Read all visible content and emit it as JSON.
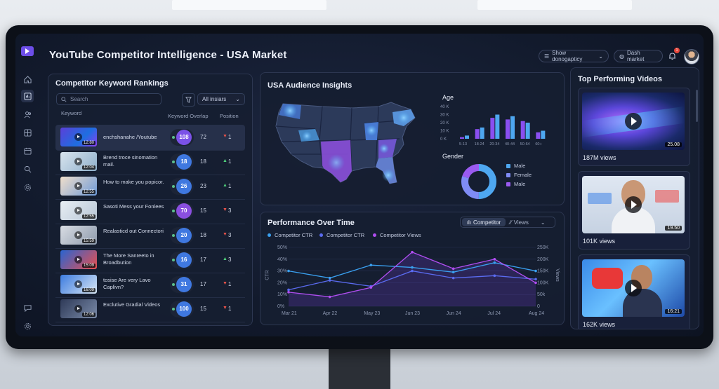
{
  "header": {
    "title": "YouTube Competitor Intelligence - USA Market",
    "show_button": "Show donogapticy",
    "dash_button": "Dash market",
    "notification_count": "1"
  },
  "keyword_panel": {
    "title": "Competitor Keyword Rankings",
    "search_placeholder": "Search",
    "filter_select": "All insiars",
    "columns": {
      "keyword": "Keyword",
      "overlap": "Keyword Overlap",
      "position": "Position"
    },
    "rows": [
      {
        "text": "enchshanahe /Youtube",
        "duration": "12:80",
        "score": "108",
        "overlap": "72",
        "trend": "down",
        "position": "1"
      },
      {
        "text": "Brend troce sinomation mail.",
        "duration": "12:04",
        "score": "18",
        "overlap": "18",
        "trend": "up",
        "position": "1"
      },
      {
        "text": "How to make you popicor.",
        "duration": "12:55",
        "score": "26",
        "overlap": "23",
        "trend": "up",
        "position": "1"
      },
      {
        "text": "Sasoti Mess your Fonlees",
        "duration": "12:55",
        "score": "70",
        "overlap": "15",
        "trend": "down",
        "position": "3"
      },
      {
        "text": "Realasticd out Connectori",
        "duration": "15:59",
        "score": "20",
        "overlap": "18",
        "trend": "down",
        "position": "3"
      },
      {
        "text": "The More Sanreeto in Broadbution",
        "duration": "15:09",
        "score": "16",
        "overlap": "17",
        "trend": "up",
        "position": "3"
      },
      {
        "text": "tosise Are very Lavo Caplivn?",
        "duration": "16:09",
        "score": "31",
        "overlap": "17",
        "trend": "down",
        "position": "1"
      },
      {
        "text": "Exclutive Gradial Videos",
        "duration": "12:06",
        "score": "100",
        "overlap": "15",
        "trend": "down",
        "position": "1"
      }
    ]
  },
  "insights": {
    "title": "USA Audience Insights",
    "age": {
      "label": "Age",
      "y_ticks": [
        "40 K",
        "30 K",
        "20 K",
        "10 K",
        "0 K"
      ],
      "categories": [
        "5-13",
        "18-24",
        "20-34",
        "40-44",
        "50-64",
        "60+"
      ],
      "series_a": [
        1,
        6,
        13,
        12,
        11,
        4
      ],
      "series_b": [
        2,
        7,
        15,
        14,
        10,
        5
      ]
    },
    "gender": {
      "label": "Gender",
      "legend": [
        "Male",
        "Female",
        "Male"
      ],
      "shares": [
        0.5,
        0.3,
        0.2
      ],
      "colors": [
        "#4ea7f0",
        "#7f8cf5",
        "#9a5af0"
      ]
    }
  },
  "top_videos": {
    "title": "Top Performing Videos",
    "items": [
      {
        "views": "187M views",
        "duration": "25.08"
      },
      {
        "views": "101K views",
        "duration": "19.50"
      },
      {
        "views": "162K views",
        "duration": "16:21"
      }
    ]
  },
  "performance": {
    "title": "Performance Over Time",
    "toggle_active": "Competitor",
    "toggle_inactive": "Views",
    "legend": [
      "Competitor CTR",
      "Competitor CTR",
      "Competitor Views"
    ],
    "left_axis_label": "CTR",
    "right_axis_label": "Views",
    "left_ticks": [
      "50%",
      "40%",
      "30%",
      "20%",
      "10%",
      "0%"
    ],
    "right_ticks": [
      "250K",
      "200K",
      "150K",
      "100K",
      "50k",
      "0"
    ],
    "x_ticks": [
      "Mar 21",
      "Apr 22",
      "May 23",
      "Jun 23",
      "Jun 24",
      "Jul 24",
      "Aug 24"
    ]
  },
  "chart_data": {
    "type": "line",
    "x": [
      "Mar 21",
      "Apr 22",
      "May 23",
      "Jun 23",
      "Jun 24",
      "Jul 24",
      "Aug 24"
    ],
    "series": [
      {
        "values": [
          30,
          24,
          35,
          33,
          29,
          37,
          30
        ],
        "color": "#3aa0f0"
      },
      {
        "values": [
          14,
          22,
          17,
          30,
          24,
          26,
          23
        ],
        "color": "#5a6bf0"
      },
      {
        "values": [
          12,
          8,
          16,
          46,
          32,
          40,
          20
        ],
        "color": "#b04ef0"
      }
    ],
    "ylabel": "CTR",
    "ylim": [
      0,
      50
    ]
  }
}
